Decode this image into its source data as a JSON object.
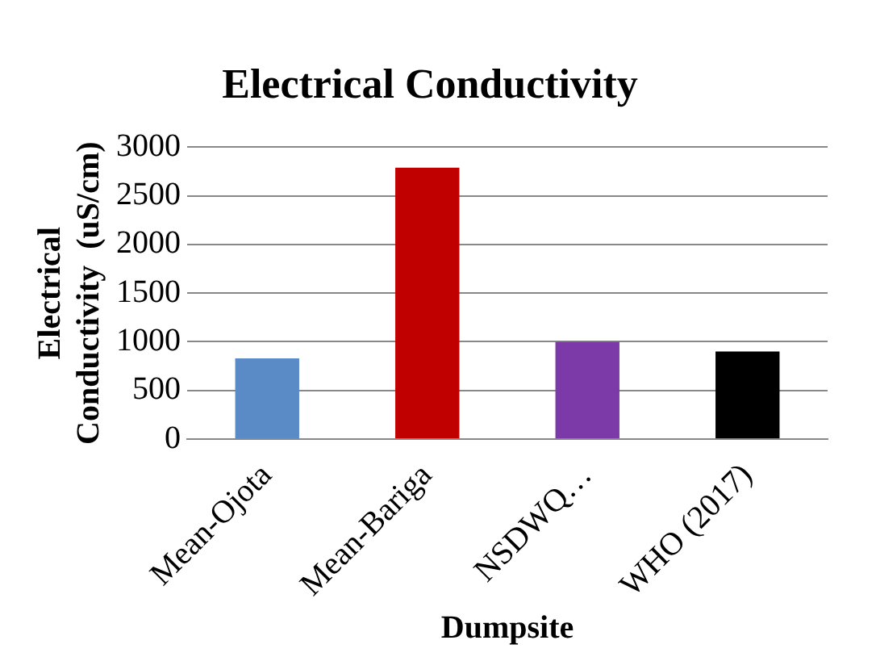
{
  "chart_data": {
    "type": "bar",
    "title": "Electrical Conductivity",
    "xlabel": "Dumpsite",
    "ylabel": "Electrical Conductivity  (uS/cm)",
    "categories": [
      "Mean-Ojota",
      "Mean-Bariga",
      "NSDWQ…",
      "WHO (2017)"
    ],
    "values": [
      830,
      2790,
      1000,
      900
    ],
    "colors": [
      "#5b8bc6",
      "#c00000",
      "#7b3aa8",
      "#000000"
    ],
    "ylim": [
      0,
      3000
    ],
    "yticks": [
      0,
      500,
      1000,
      1500,
      2000,
      2500,
      3000
    ],
    "grid": "y",
    "legend": false
  }
}
